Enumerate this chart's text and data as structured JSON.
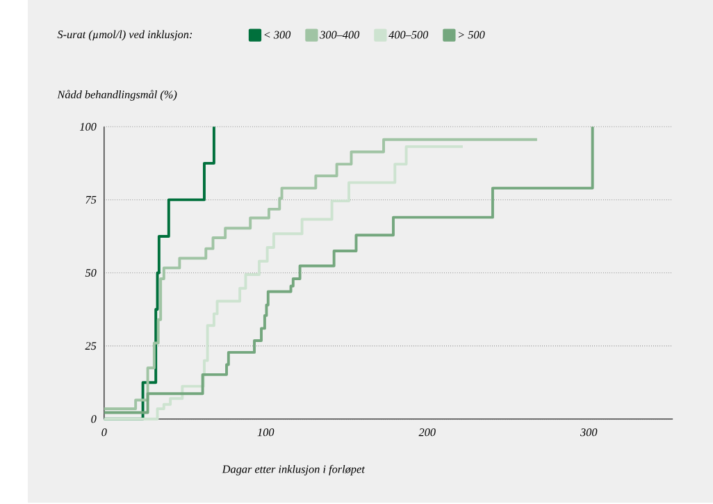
{
  "chart_data": {
    "type": "step",
    "xlabel": "Dagar etter inklusjon i forløpet",
    "ylabel": "Nådd behandlingsmål (%)",
    "legend_title": "S-urat (µmol/l) ved inklusjon:",
    "legend": "top",
    "grid": "y",
    "line_style": "solid",
    "xlim": [
      0,
      352
    ],
    "ylim": [
      0,
      100
    ],
    "xticks": [
      0,
      100,
      200,
      300
    ],
    "yticks": [
      0,
      25,
      50,
      75,
      100
    ],
    "series": [
      {
        "name": "< 300",
        "color": "#00703c",
        "x": [
          0,
          24,
          32,
          33,
          34,
          40,
          62,
          68
        ],
        "values": [
          0,
          12.5,
          37.5,
          50,
          62.5,
          75,
          87.5,
          100
        ]
      },
      {
        "name": "300–400",
        "color": "#a0c4a4",
        "x": [
          0,
          19.5,
          27,
          31,
          33.5,
          35,
          37,
          46.7,
          63,
          67.4,
          75,
          90.5,
          102,
          108.6,
          110,
          131,
          144,
          153,
          173,
          268
        ],
        "values": [
          3.5,
          6.5,
          17.5,
          26,
          34,
          48,
          51.7,
          55,
          58.3,
          62,
          65.3,
          68.8,
          71.8,
          75.5,
          79,
          83.2,
          87.2,
          91.4,
          95.6,
          95.6
        ]
      },
      {
        "name": "400–500",
        "color": "#cde3d0",
        "x": [
          0,
          33,
          37,
          41,
          48.4,
          61.5,
          62,
          64,
          68,
          70,
          84,
          87.6,
          96,
          101,
          105,
          122.5,
          141,
          151.5,
          180,
          187,
          222
        ],
        "values": [
          0,
          3.5,
          5,
          7,
          11.2,
          15,
          20,
          32,
          36,
          40.3,
          44.7,
          49.4,
          54,
          58.7,
          63.4,
          68.3,
          74.6,
          80.9,
          87.2,
          93.2,
          93.2
        ]
      },
      {
        "name": "> 500",
        "color": "#74a77e",
        "x": [
          0,
          27,
          61,
          75.8,
          77,
          93,
          97.3,
          99.4,
          100.5,
          101.5,
          115.6,
          117,
          121.2,
          142.3,
          156,
          179,
          240.5,
          302.3
        ],
        "values": [
          2.2,
          8.7,
          15.2,
          18.6,
          22.8,
          26.8,
          31,
          35.4,
          39,
          43.6,
          45.5,
          48,
          52.4,
          57.5,
          62.9,
          69,
          79,
          100
        ]
      }
    ]
  }
}
